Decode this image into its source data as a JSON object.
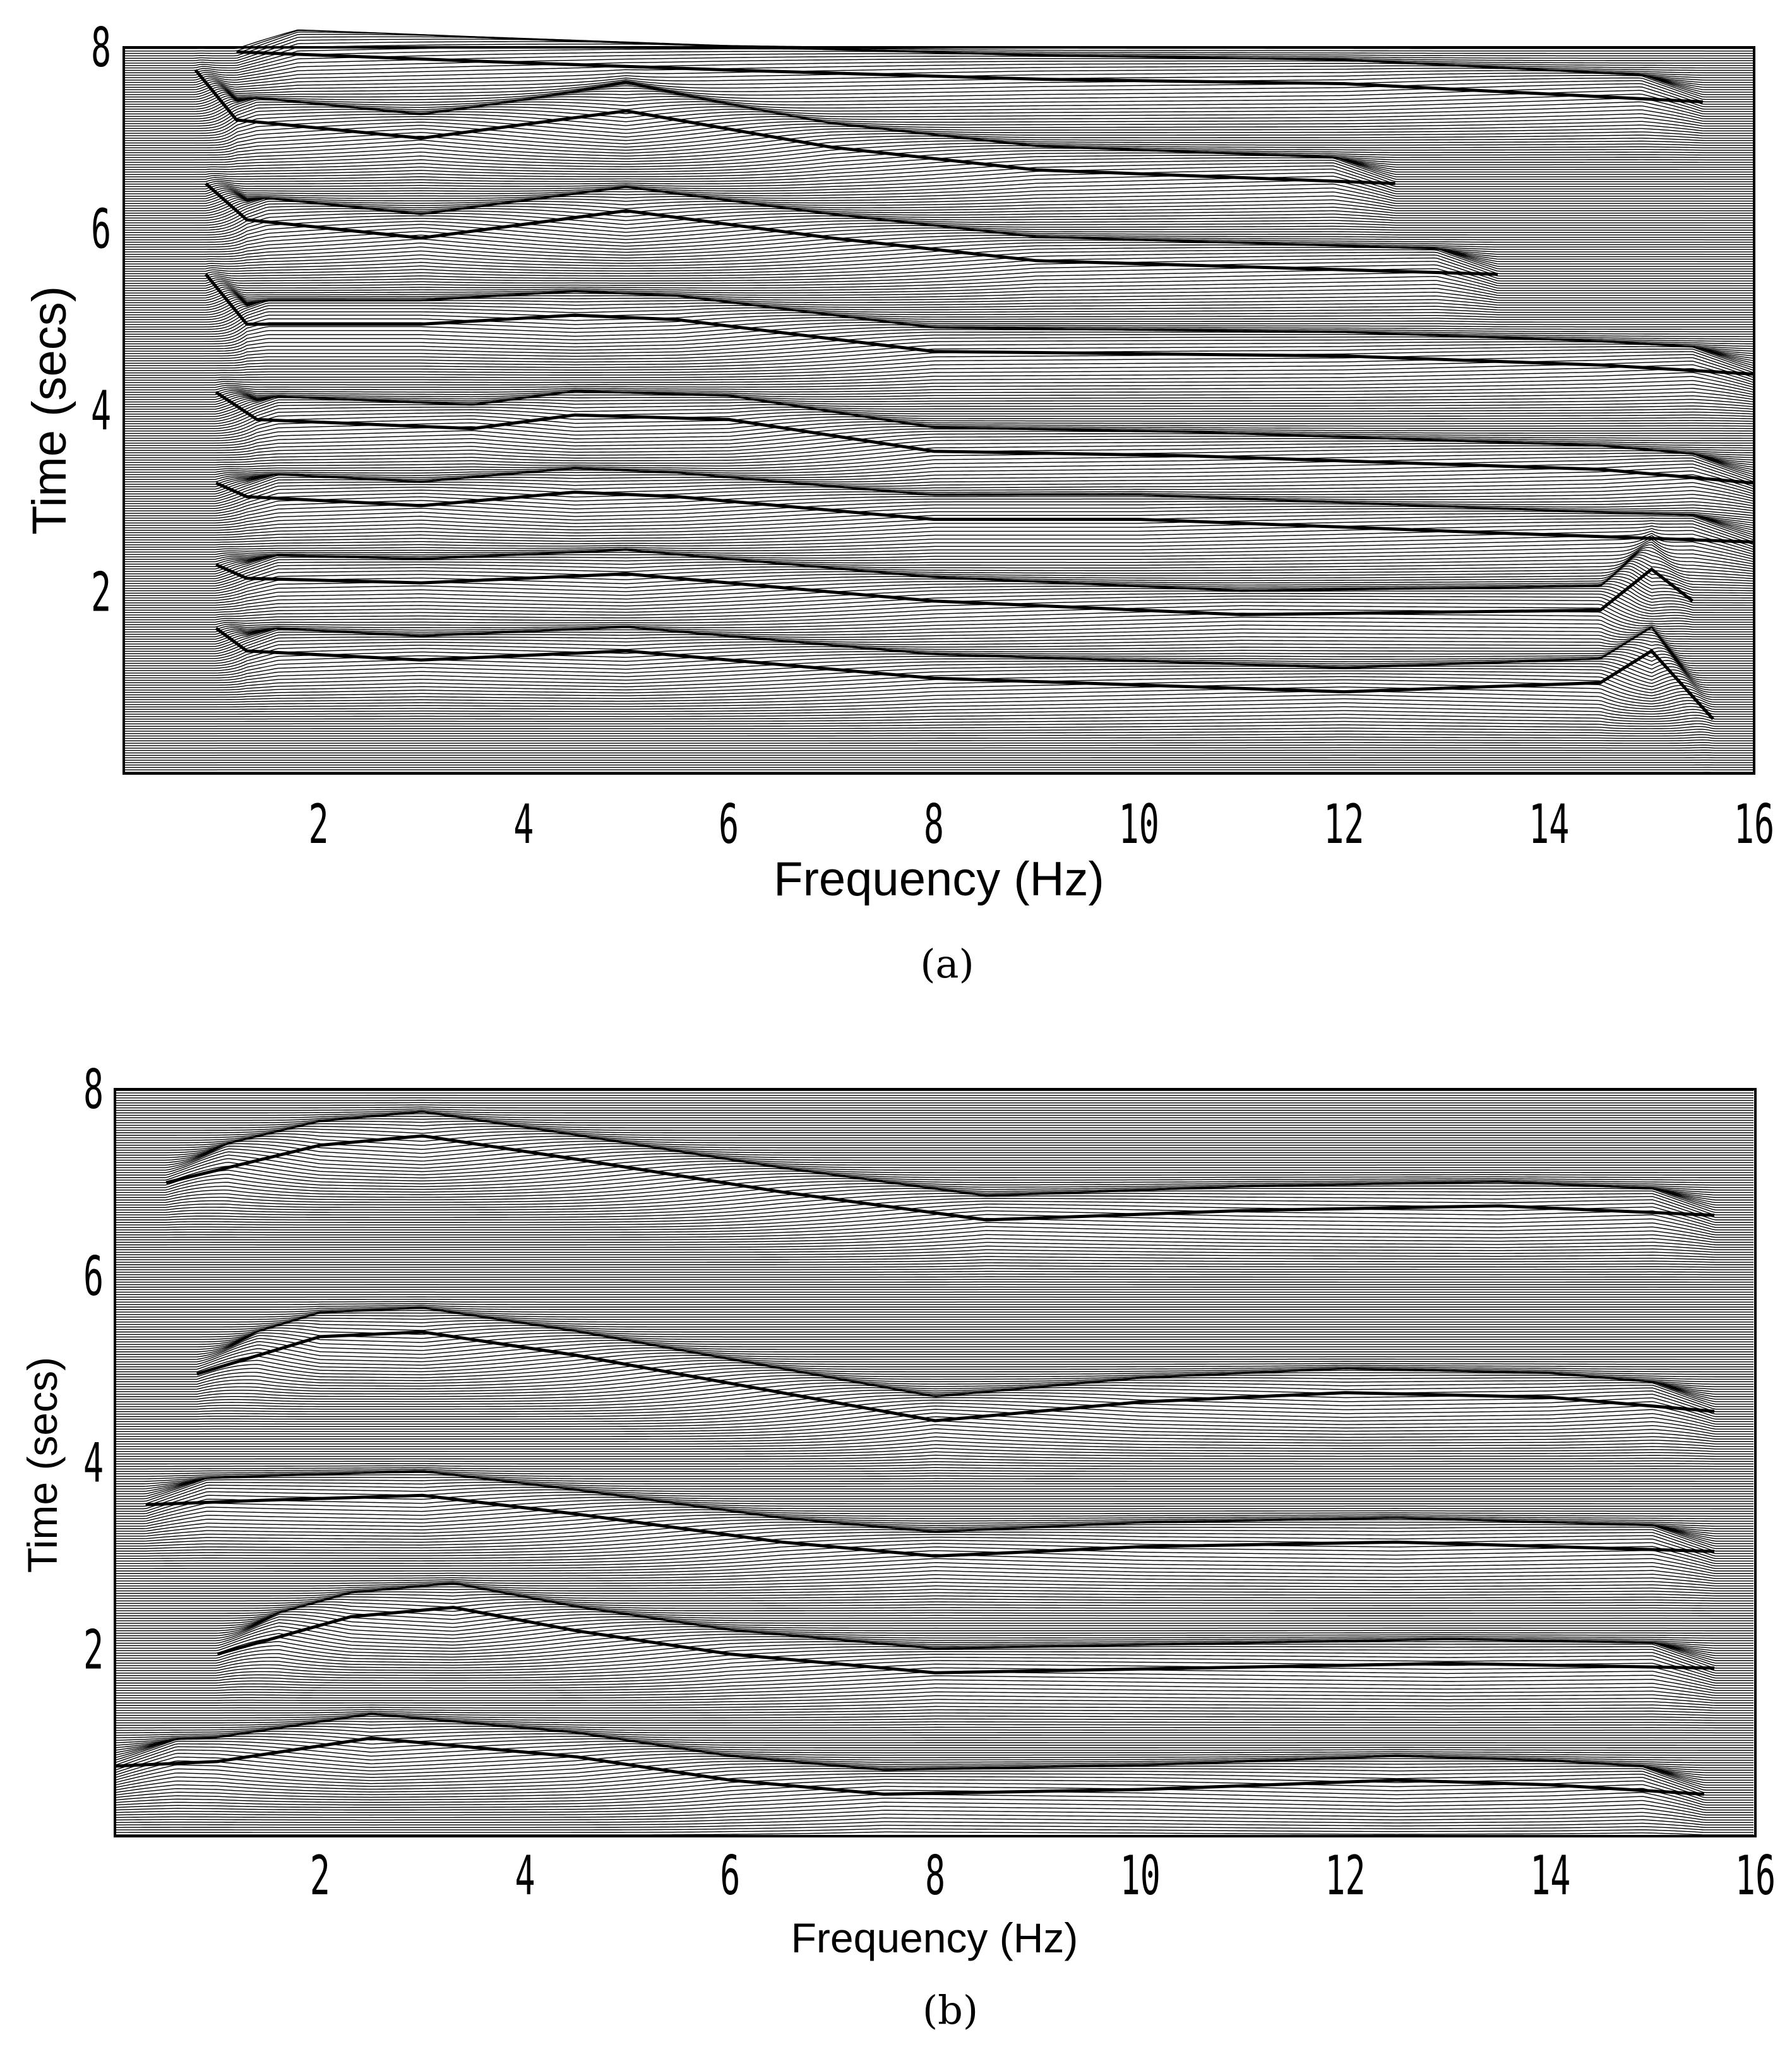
{
  "chart_data": [
    {
      "type": "line",
      "subtype": "wiggle-trace plot of time-frequency spectra",
      "caption": "(a)",
      "xlabel": "Frequency (Hz)",
      "ylabel": "Time (secs)",
      "xlim": [
        0.1,
        16
      ],
      "ylim": [
        0,
        8
      ],
      "xticks": [
        2,
        4,
        6,
        8,
        10,
        12,
        14,
        16
      ],
      "yticks": [
        2,
        4,
        6,
        8
      ],
      "grid": false,
      "line_color": "#000000",
      "background": "#ffffff",
      "ridges": [
        {
          "time": 1.35,
          "points": [
            [
              1.0,
              1.6
            ],
            [
              1.3,
              1.35
            ],
            [
              3.0,
              1.25
            ],
            [
              5.0,
              1.35
            ],
            [
              8.0,
              1.05
            ],
            [
              12.0,
              0.9
            ],
            [
              14.5,
              1.0
            ],
            [
              15.0,
              1.35
            ],
            [
              15.6,
              0.6
            ]
          ]
        },
        {
          "time": 2.15,
          "points": [
            [
              1.0,
              2.3
            ],
            [
              1.3,
              2.15
            ],
            [
              3.0,
              2.1
            ],
            [
              5.0,
              2.2
            ],
            [
              8.0,
              1.9
            ],
            [
              11.0,
              1.75
            ],
            [
              14.5,
              1.8
            ],
            [
              15.0,
              2.25
            ],
            [
              15.4,
              1.9
            ]
          ]
        },
        {
          "time": 3.05,
          "points": [
            [
              1.0,
              3.2
            ],
            [
              1.3,
              3.05
            ],
            [
              3.0,
              2.95
            ],
            [
              4.5,
              3.1
            ],
            [
              5.5,
              3.05
            ],
            [
              8.0,
              2.8
            ],
            [
              10.0,
              2.8
            ],
            [
              13.5,
              2.65
            ],
            [
              16.0,
              2.55
            ]
          ]
        },
        {
          "time": 3.9,
          "points": [
            [
              1.0,
              4.2
            ],
            [
              1.4,
              3.9
            ],
            [
              3.5,
              3.8
            ],
            [
              4.5,
              3.95
            ],
            [
              6.0,
              3.9
            ],
            [
              8.0,
              3.55
            ],
            [
              10.5,
              3.5
            ],
            [
              14.5,
              3.35
            ],
            [
              16.0,
              3.2
            ]
          ]
        },
        {
          "time": 4.95,
          "points": [
            [
              0.9,
              5.5
            ],
            [
              1.3,
              4.95
            ],
            [
              3.0,
              4.95
            ],
            [
              4.5,
              5.05
            ],
            [
              5.5,
              5.0
            ],
            [
              8.0,
              4.65
            ],
            [
              12.0,
              4.6
            ],
            [
              14.5,
              4.5
            ],
            [
              16.0,
              4.4
            ]
          ]
        },
        {
          "time": 6.1,
          "points": [
            [
              0.9,
              6.5
            ],
            [
              1.3,
              6.1
            ],
            [
              3.0,
              5.9
            ],
            [
              5.0,
              6.2
            ],
            [
              7.0,
              5.9
            ],
            [
              9.0,
              5.65
            ],
            [
              12.0,
              5.55
            ],
            [
              13.5,
              5.5
            ]
          ]
        },
        {
          "time": 7.2,
          "points": [
            [
              0.8,
              7.75
            ],
            [
              1.2,
              7.2
            ],
            [
              3.0,
              7.0
            ],
            [
              5.0,
              7.3
            ],
            [
              7.0,
              6.9
            ],
            [
              9.0,
              6.65
            ],
            [
              12.5,
              6.5
            ]
          ]
        },
        {
          "time": 7.95,
          "points": [
            [
              1.2,
              7.95
            ],
            [
              3.5,
              7.85
            ],
            [
              6.0,
              7.75
            ],
            [
              9.0,
              7.65
            ],
            [
              12.0,
              7.6
            ],
            [
              15.5,
              7.4
            ]
          ]
        }
      ]
    },
    {
      "type": "line",
      "subtype": "wiggle-trace plot of time-frequency spectra",
      "caption": "(b)",
      "xlabel": "Frequency (Hz)",
      "ylabel": "Time (secs)",
      "xlim": [
        0,
        16
      ],
      "ylim": [
        0,
        8
      ],
      "xticks": [
        2,
        4,
        6,
        8,
        10,
        12,
        14,
        16
      ],
      "yticks": [
        2,
        4,
        6,
        8
      ],
      "grid": false,
      "line_color": "#000000",
      "background": "#ffffff",
      "ridges": [
        {
          "time": 0.8,
          "points": [
            [
              0.0,
              0.75
            ],
            [
              1.0,
              0.8
            ],
            [
              2.5,
              1.05
            ],
            [
              4.5,
              0.85
            ],
            [
              6.0,
              0.6
            ],
            [
              7.5,
              0.45
            ],
            [
              10.0,
              0.5
            ],
            [
              12.5,
              0.6
            ],
            [
              14.0,
              0.55
            ],
            [
              15.5,
              0.45
            ]
          ]
        },
        {
          "time": 2.0,
          "points": [
            [
              1.0,
              1.95
            ],
            [
              2.3,
              2.35
            ],
            [
              3.3,
              2.45
            ],
            [
              4.5,
              2.2
            ],
            [
              6.0,
              1.95
            ],
            [
              8.0,
              1.75
            ],
            [
              10.5,
              1.8
            ],
            [
              13.0,
              1.85
            ],
            [
              15.6,
              1.8
            ]
          ]
        },
        {
          "time": 3.45,
          "points": [
            [
              0.3,
              3.55
            ],
            [
              1.5,
              3.6
            ],
            [
              3.0,
              3.65
            ],
            [
              4.5,
              3.45
            ],
            [
              6.5,
              3.15
            ],
            [
              8.0,
              3.0
            ],
            [
              10.0,
              3.1
            ],
            [
              12.5,
              3.15
            ],
            [
              15.6,
              3.05
            ]
          ]
        },
        {
          "time": 4.95,
          "points": [
            [
              0.8,
              4.95
            ],
            [
              2.0,
              5.35
            ],
            [
              3.0,
              5.4
            ],
            [
              4.5,
              5.15
            ],
            [
              6.5,
              4.75
            ],
            [
              8.0,
              4.45
            ],
            [
              10.0,
              4.65
            ],
            [
              12.0,
              4.75
            ],
            [
              14.0,
              4.7
            ],
            [
              15.6,
              4.55
            ]
          ]
        },
        {
          "time": 6.95,
          "points": [
            [
              0.5,
              7.0
            ],
            [
              2.0,
              7.4
            ],
            [
              3.0,
              7.5
            ],
            [
              4.5,
              7.25
            ],
            [
              6.5,
              6.9
            ],
            [
              8.5,
              6.6
            ],
            [
              11.0,
              6.7
            ],
            [
              13.5,
              6.75
            ],
            [
              15.6,
              6.65
            ]
          ]
        }
      ]
    }
  ]
}
